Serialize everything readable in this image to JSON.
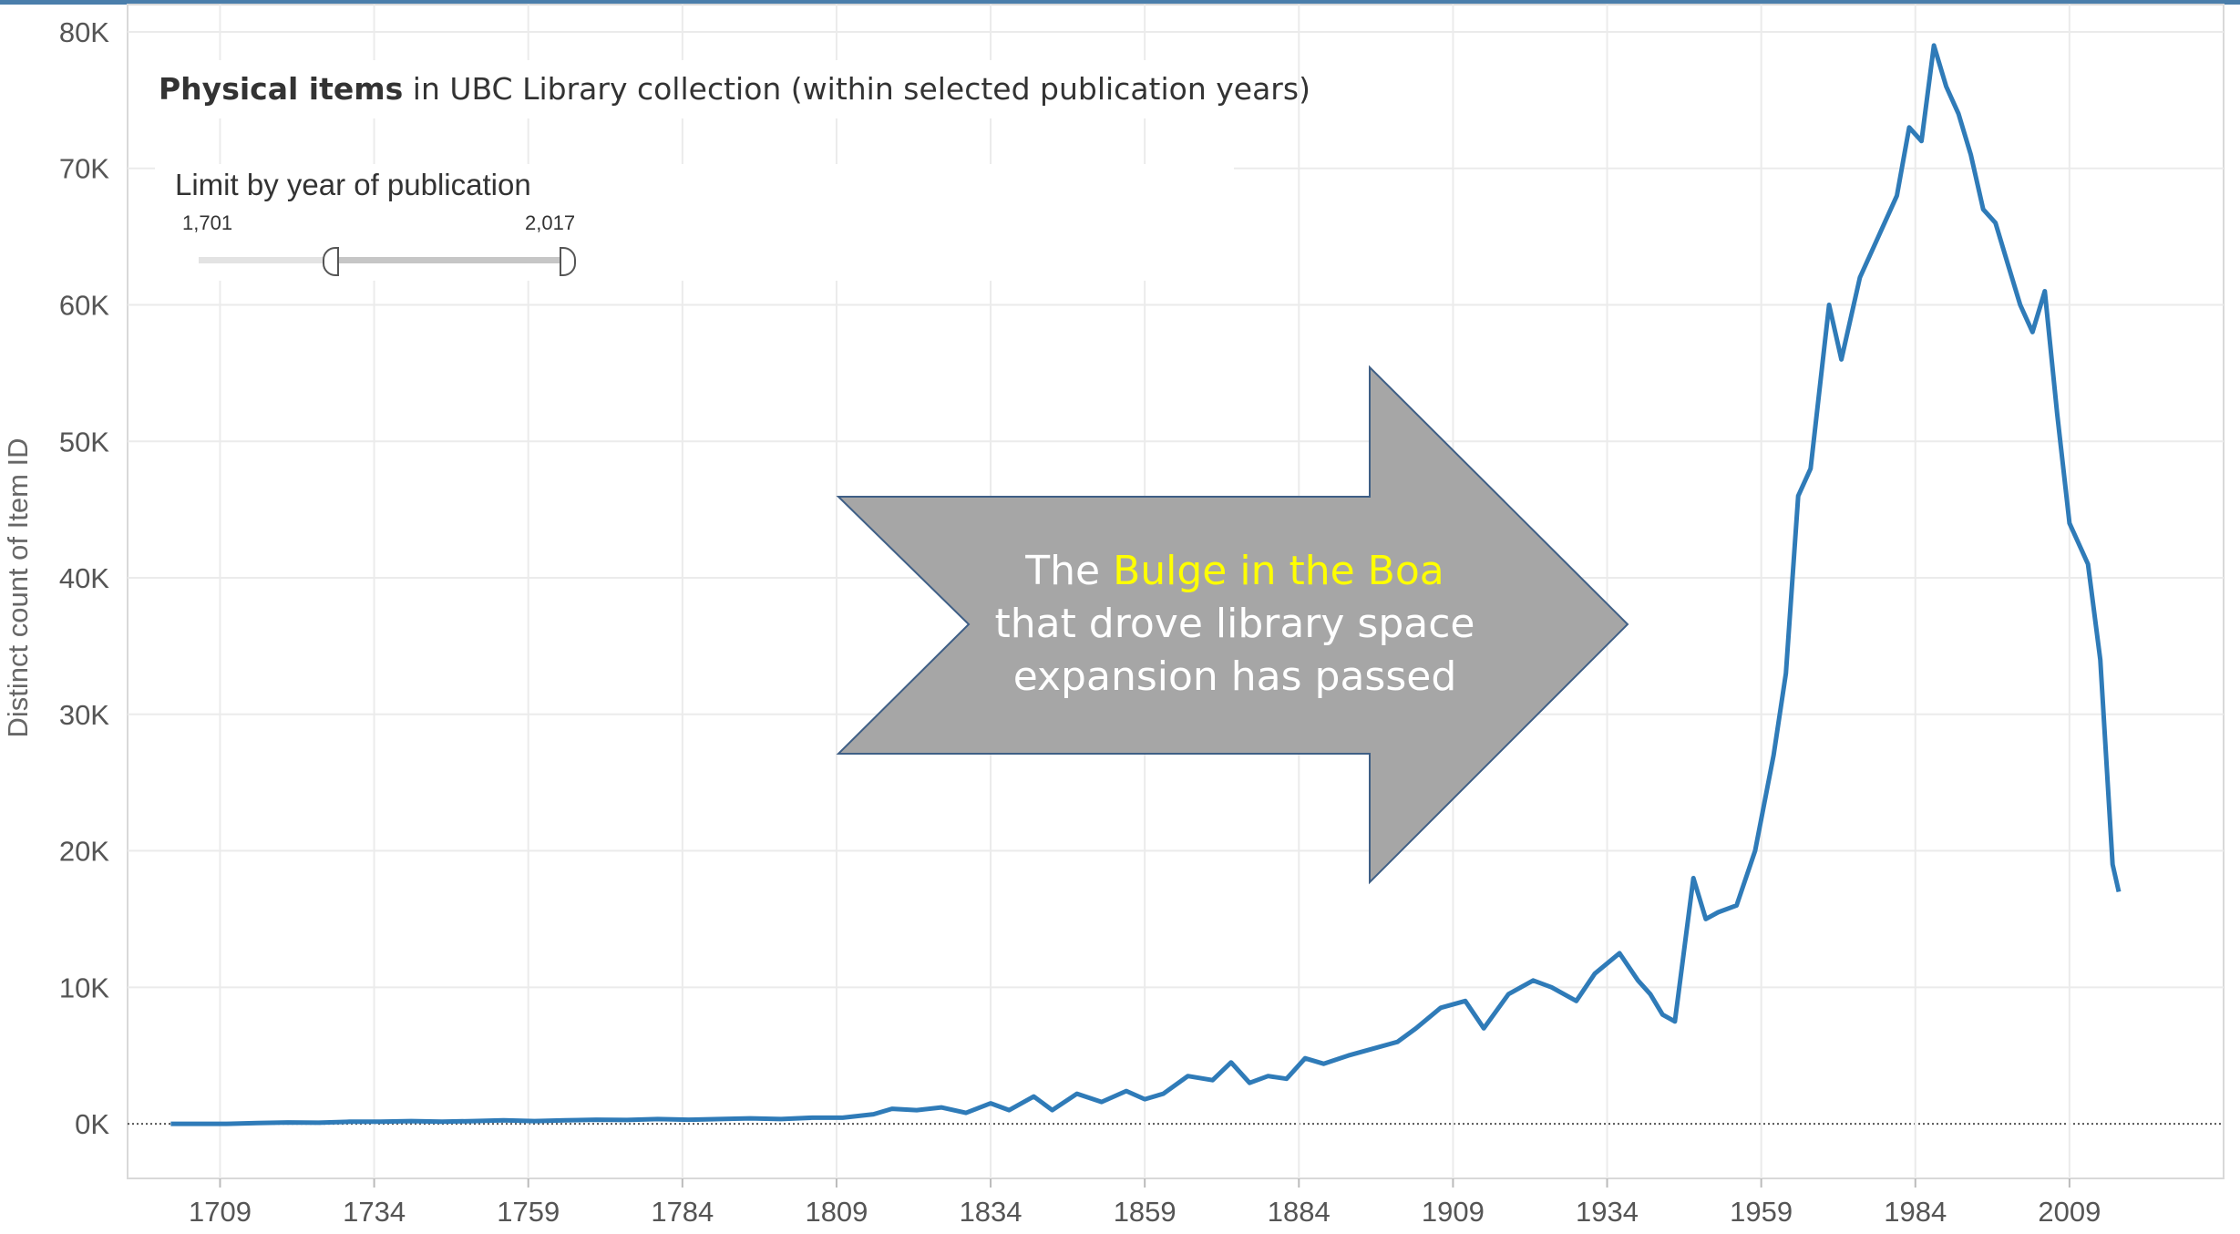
{
  "chart_data": {
    "type": "line",
    "title": "Physical items in UBC Library collection (within selected publication years)",
    "title_bold_part": "Physical items",
    "title_rest": " in UBC Library collection (within selected publication years)",
    "ylabel": "Distinct count of Item ID",
    "xlabel": "",
    "x_ticks": [
      "1709",
      "1734",
      "1759",
      "1784",
      "1809",
      "1834",
      "1859",
      "1884",
      "1909",
      "1934",
      "1959",
      "1984",
      "2009"
    ],
    "y_ticks": [
      "0K",
      "10K",
      "20K",
      "30K",
      "40K",
      "50K",
      "60K",
      "70K",
      "80K"
    ],
    "xlim": [
      1694,
      2034
    ],
    "ylim": [
      -4000,
      82000
    ],
    "grid": true,
    "line_color": "#2f7bb8",
    "series": [
      {
        "x": [
          1701,
          1705,
          1710,
          1715,
          1720,
          1725,
          1730,
          1735,
          1740,
          1745,
          1750,
          1755,
          1760,
          1765,
          1770,
          1775,
          1780,
          1785,
          1790,
          1795,
          1800,
          1805,
          1810,
          1815,
          1818,
          1822,
          1826,
          1830,
          1834,
          1837,
          1841,
          1844,
          1848,
          1852,
          1856,
          1859,
          1862,
          1866,
          1870,
          1873,
          1876,
          1879,
          1882,
          1885,
          1888,
          1892,
          1896,
          1900,
          1903,
          1907,
          1911,
          1914,
          1918,
          1922,
          1925,
          1929,
          1932,
          1936,
          1939,
          1941,
          1943,
          1945,
          1948,
          1950,
          1952,
          1955,
          1958,
          1961,
          1963,
          1965,
          1967,
          1970,
          1972,
          1975,
          1978,
          1981,
          1983,
          1985,
          1987,
          1989,
          1991,
          1993,
          1995,
          1997,
          1999,
          2001,
          2003,
          2005,
          2007,
          2009,
          2012,
          2014,
          2016,
          2017
        ],
        "values": [
          0,
          0,
          0,
          50,
          100,
          80,
          150,
          150,
          200,
          150,
          200,
          250,
          200,
          250,
          300,
          280,
          350,
          300,
          350,
          400,
          350,
          450,
          450,
          700,
          1100,
          1000,
          1200,
          800,
          1500,
          1000,
          2000,
          1000,
          2200,
          1600,
          2400,
          1800,
          2200,
          3500,
          3200,
          4500,
          3000,
          3500,
          3300,
          4800,
          4400,
          5000,
          5500,
          6000,
          7000,
          8500,
          9000,
          7000,
          9500,
          10500,
          10000,
          9000,
          11000,
          12500,
          10500,
          9500,
          8000,
          7500,
          18000,
          15000,
          15500,
          16000,
          20000,
          27000,
          33000,
          46000,
          48000,
          60000,
          56000,
          62000,
          65000,
          68000,
          73000,
          72000,
          79000,
          76000,
          74000,
          71000,
          67000,
          66000,
          63000,
          60000,
          58000,
          61000,
          52000,
          44000,
          41000,
          34000,
          19000,
          17000
        ]
      }
    ]
  },
  "filter": {
    "label": "Limit by year of publication",
    "min_label": "1,701",
    "max_label": "2,017",
    "range_start_fraction": 0.36,
    "range_end_fraction": 1.0
  },
  "callout": {
    "text_before": "The ",
    "highlight": "Bulge in the Boa",
    "line2": "that drove library space",
    "line3": "expansion has passed",
    "fill_color": "#a6a6a6",
    "border_color": "#3f5f86",
    "highlight_color": "#ffff00"
  }
}
